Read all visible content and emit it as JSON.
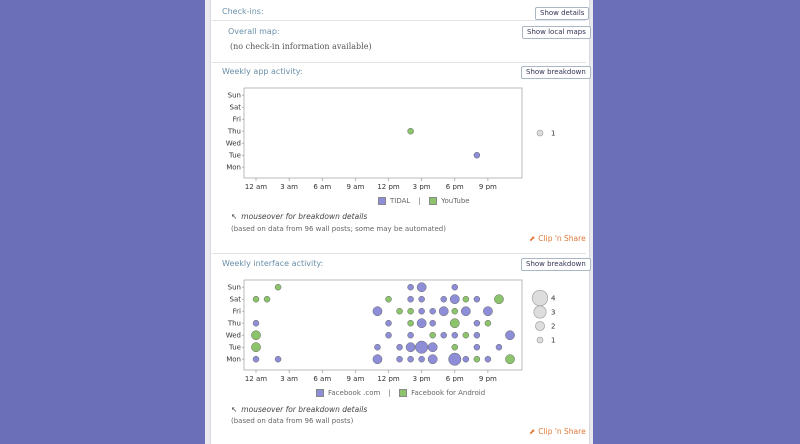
{
  "checkins": {
    "title": "Check-ins:",
    "details_button": "Show details",
    "map_label": "Overall map:",
    "local_maps_button": "Show local maps",
    "empty_text": "(no check-in information available)"
  },
  "app_activity": {
    "title": "Weekly app activity:",
    "breakdown_button": "Show breakdown",
    "legend": [
      {
        "name": "TIDAL",
        "color": "#8e8ed8"
      },
      {
        "name": "YouTube",
        "color": "#8bc46a"
      }
    ],
    "separator": "|",
    "hint": "mouseover for breakdown details",
    "note": "(based on data from 96 wall posts; some may be automated)",
    "share": "Clip 'n Share"
  },
  "interface_activity": {
    "title": "Weekly interface activity:",
    "breakdown_button": "Show breakdown",
    "legend": [
      {
        "name": "Facebook .com",
        "color": "#8e8ed8"
      },
      {
        "name": "Facebook for Android",
        "color": "#8bc46a"
      }
    ],
    "separator": "|",
    "hint": "mouseover for breakdown details",
    "note": "(based on data from 96 wall posts)",
    "share": "Clip 'n Share"
  },
  "chart_data": [
    {
      "type": "scatter",
      "title": "Weekly app activity",
      "x_ticks": [
        "12 am",
        "3 am",
        "6 am",
        "9 am",
        "12 pm",
        "3 pm",
        "6 pm",
        "9 pm"
      ],
      "y_ticks": [
        "Sun",
        "Sat",
        "Fri",
        "Thu",
        "Wed",
        "Tue",
        "Mon"
      ],
      "size_legend": [
        {
          "label": "1",
          "value": 1
        }
      ],
      "points": [
        {
          "day": "Thu",
          "hour": 14,
          "series": "YouTube",
          "count": 1
        },
        {
          "day": "Tue",
          "hour": 20,
          "series": "TIDAL",
          "count": 1
        }
      ]
    },
    {
      "type": "scatter",
      "title": "Weekly interface activity",
      "x_ticks": [
        "12 am",
        "3 am",
        "6 am",
        "9 am",
        "12 pm",
        "3 pm",
        "6 pm",
        "9 pm"
      ],
      "y_ticks": [
        "Sun",
        "Sat",
        "Fri",
        "Thu",
        "Wed",
        "Tue",
        "Mon"
      ],
      "size_legend": [
        {
          "label": "4",
          "value": 4
        },
        {
          "label": "3",
          "value": 3
        },
        {
          "label": "2",
          "value": 2
        },
        {
          "label": "1",
          "value": 1
        }
      ],
      "points": [
        {
          "day": "Sun",
          "hour": 2,
          "series": "Facebook for Android",
          "count": 1
        },
        {
          "day": "Sun",
          "hour": 14,
          "series": "Facebook .com",
          "count": 1
        },
        {
          "day": "Sun",
          "hour": 15,
          "series": "Facebook .com",
          "count": 2
        },
        {
          "day": "Sun",
          "hour": 18,
          "series": "Facebook .com",
          "count": 1
        },
        {
          "day": "Sat",
          "hour": 0,
          "series": "Facebook for Android",
          "count": 1
        },
        {
          "day": "Sat",
          "hour": 1,
          "series": "Facebook for Android",
          "count": 1
        },
        {
          "day": "Sat",
          "hour": 12,
          "series": "Facebook for Android",
          "count": 1
        },
        {
          "day": "Sat",
          "hour": 14,
          "series": "Facebook .com",
          "count": 1
        },
        {
          "day": "Sat",
          "hour": 15,
          "series": "Facebook .com",
          "count": 1
        },
        {
          "day": "Sat",
          "hour": 17,
          "series": "Facebook .com",
          "count": 1
        },
        {
          "day": "Sat",
          "hour": 18,
          "series": "Facebook .com",
          "count": 2
        },
        {
          "day": "Sat",
          "hour": 19,
          "series": "Facebook for Android",
          "count": 1
        },
        {
          "day": "Sat",
          "hour": 20,
          "series": "Facebook .com",
          "count": 1
        },
        {
          "day": "Sat",
          "hour": 22,
          "series": "Facebook for Android",
          "count": 2
        },
        {
          "day": "Fri",
          "hour": 11,
          "series": "Facebook .com",
          "count": 2
        },
        {
          "day": "Fri",
          "hour": 13,
          "series": "Facebook for Android",
          "count": 1
        },
        {
          "day": "Fri",
          "hour": 14,
          "series": "Facebook for Android",
          "count": 1
        },
        {
          "day": "Fri",
          "hour": 15,
          "series": "Facebook .com",
          "count": 1
        },
        {
          "day": "Fri",
          "hour": 16,
          "series": "Facebook .com",
          "count": 1
        },
        {
          "day": "Fri",
          "hour": 17,
          "series": "Facebook .com",
          "count": 2
        },
        {
          "day": "Fri",
          "hour": 18,
          "series": "Facebook for Android",
          "count": 1
        },
        {
          "day": "Fri",
          "hour": 19,
          "series": "Facebook .com",
          "count": 2
        },
        {
          "day": "Fri",
          "hour": 21,
          "series": "Facebook .com",
          "count": 2
        },
        {
          "day": "Thu",
          "hour": 0,
          "series": "Facebook .com",
          "count": 1
        },
        {
          "day": "Thu",
          "hour": 12,
          "series": "Facebook .com",
          "count": 1
        },
        {
          "day": "Thu",
          "hour": 14,
          "series": "Facebook for Android",
          "count": 1
        },
        {
          "day": "Thu",
          "hour": 15,
          "series": "Facebook .com",
          "count": 2
        },
        {
          "day": "Thu",
          "hour": 16,
          "series": "Facebook .com",
          "count": 1
        },
        {
          "day": "Thu",
          "hour": 18,
          "series": "Facebook for Android",
          "count": 2
        },
        {
          "day": "Thu",
          "hour": 20,
          "series": "Facebook .com",
          "count": 1
        },
        {
          "day": "Thu",
          "hour": 21,
          "series": "Facebook for Android",
          "count": 1
        },
        {
          "day": "Wed",
          "hour": 0,
          "series": "Facebook for Android",
          "count": 2
        },
        {
          "day": "Wed",
          "hour": 12,
          "series": "Facebook .com",
          "count": 1
        },
        {
          "day": "Wed",
          "hour": 14,
          "series": "Facebook .com",
          "count": 1
        },
        {
          "day": "Wed",
          "hour": 16,
          "series": "Facebook for Android",
          "count": 1
        },
        {
          "day": "Wed",
          "hour": 17,
          "series": "Facebook .com",
          "count": 1
        },
        {
          "day": "Wed",
          "hour": 18,
          "series": "Facebook .com",
          "count": 1
        },
        {
          "day": "Wed",
          "hour": 19,
          "series": "Facebook for Android",
          "count": 1
        },
        {
          "day": "Wed",
          "hour": 20,
          "series": "Facebook .com",
          "count": 1
        },
        {
          "day": "Wed",
          "hour": 23,
          "series": "Facebook .com",
          "count": 2
        },
        {
          "day": "Tue",
          "hour": 0,
          "series": "Facebook for Android",
          "count": 2
        },
        {
          "day": "Tue",
          "hour": 11,
          "series": "Facebook .com",
          "count": 1
        },
        {
          "day": "Tue",
          "hour": 13,
          "series": "Facebook .com",
          "count": 1
        },
        {
          "day": "Tue",
          "hour": 14,
          "series": "Facebook .com",
          "count": 2
        },
        {
          "day": "Tue",
          "hour": 15,
          "series": "Facebook .com",
          "count": 3
        },
        {
          "day": "Tue",
          "hour": 16,
          "series": "Facebook .com",
          "count": 2
        },
        {
          "day": "Tue",
          "hour": 18,
          "series": "Facebook for Android",
          "count": 1
        },
        {
          "day": "Tue",
          "hour": 20,
          "series": "Facebook .com",
          "count": 1
        },
        {
          "day": "Tue",
          "hour": 22,
          "series": "Facebook .com",
          "count": 1
        },
        {
          "day": "Mon",
          "hour": 0,
          "series": "Facebook .com",
          "count": 1
        },
        {
          "day": "Mon",
          "hour": 2,
          "series": "Facebook .com",
          "count": 1
        },
        {
          "day": "Mon",
          "hour": 11,
          "series": "Facebook .com",
          "count": 2
        },
        {
          "day": "Mon",
          "hour": 13,
          "series": "Facebook .com",
          "count": 1
        },
        {
          "day": "Mon",
          "hour": 14,
          "series": "Facebook .com",
          "count": 1
        },
        {
          "day": "Mon",
          "hour": 15,
          "series": "Facebook .com",
          "count": 1
        },
        {
          "day": "Mon",
          "hour": 16,
          "series": "Facebook .com",
          "count": 2
        },
        {
          "day": "Mon",
          "hour": 18,
          "series": "Facebook .com",
          "count": 3
        },
        {
          "day": "Mon",
          "hour": 19,
          "series": "Facebook .com",
          "count": 1
        },
        {
          "day": "Mon",
          "hour": 20,
          "series": "Facebook for Android",
          "count": 1
        },
        {
          "day": "Mon",
          "hour": 21,
          "series": "Facebook .com",
          "count": 1
        },
        {
          "day": "Mon",
          "hour": 23,
          "series": "Facebook for Android",
          "count": 2
        }
      ]
    }
  ]
}
